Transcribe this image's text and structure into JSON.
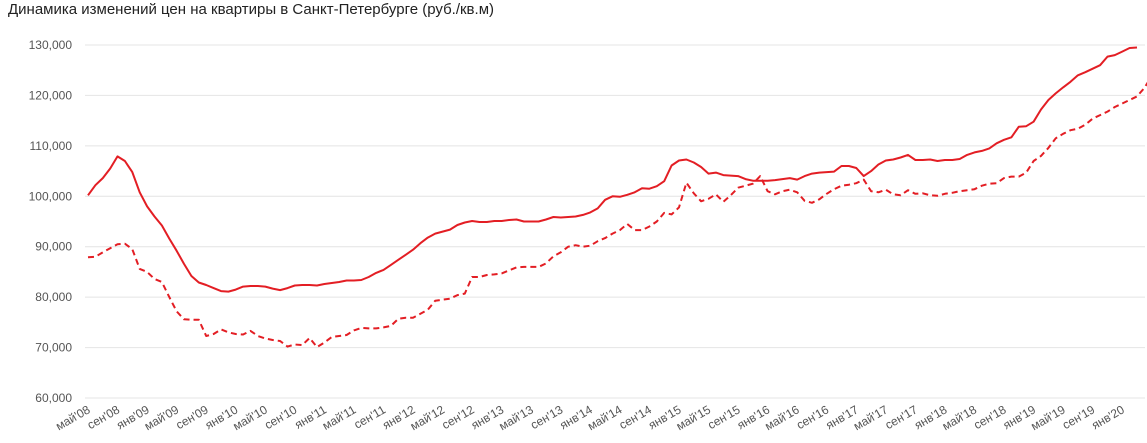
{
  "chart_data": {
    "type": "line",
    "title": "Динамика изменений цен на квартиры в Санкт-Петербурге (руб./кв.м)",
    "xlabel": "",
    "ylabel": "",
    "ylim": [
      60000,
      130000
    ],
    "yticks": [
      60000,
      70000,
      80000,
      90000,
      100000,
      110000,
      120000,
      130000
    ],
    "ytick_labels": [
      "60,000",
      "70,000",
      "80,000",
      "90,000",
      "100,000",
      "110,000",
      "120,000",
      "130,000"
    ],
    "x_start": "май'08",
    "grid": true,
    "legend": "none",
    "tick_labels": [
      {
        "index": 0,
        "label": "май'08"
      },
      {
        "index": 4,
        "label": "сен'08"
      },
      {
        "index": 8,
        "label": "янв'09"
      },
      {
        "index": 12,
        "label": "май'09"
      },
      {
        "index": 16,
        "label": "сен'09"
      },
      {
        "index": 20,
        "label": "янв'10"
      },
      {
        "index": 24,
        "label": "май'10"
      },
      {
        "index": 28,
        "label": "сен'10"
      },
      {
        "index": 32,
        "label": "янв'11"
      },
      {
        "index": 36,
        "label": "май'11"
      },
      {
        "index": 40,
        "label": "сен'11"
      },
      {
        "index": 44,
        "label": "янв'12"
      },
      {
        "index": 48,
        "label": "май'12"
      },
      {
        "index": 52,
        "label": "сен'12"
      },
      {
        "index": 56,
        "label": "янв'13"
      },
      {
        "index": 60,
        "label": "май'13"
      },
      {
        "index": 64,
        "label": "сен'13"
      },
      {
        "index": 68,
        "label": "янв'14"
      },
      {
        "index": 72,
        "label": "май'14"
      },
      {
        "index": 76,
        "label": "сен'14"
      },
      {
        "index": 80,
        "label": "янв'15"
      },
      {
        "index": 84,
        "label": "май'15"
      },
      {
        "index": 88,
        "label": "сен'15"
      },
      {
        "index": 92,
        "label": "янв'16"
      },
      {
        "index": 96,
        "label": "май'16"
      },
      {
        "index": 100,
        "label": "сен'16"
      },
      {
        "index": 104,
        "label": "янв'17"
      },
      {
        "index": 108,
        "label": "май'17"
      },
      {
        "index": 112,
        "label": "сен'17"
      },
      {
        "index": 116,
        "label": "янв'18"
      },
      {
        "index": 120,
        "label": "май'18"
      },
      {
        "index": 124,
        "label": "сен'18"
      },
      {
        "index": 128,
        "label": "янв'19"
      },
      {
        "index": 132,
        "label": "май'19"
      },
      {
        "index": 136,
        "label": "сен'19"
      },
      {
        "index": 140,
        "label": "янв'20"
      }
    ],
    "series": [
      {
        "style": "solid",
        "color": "#e31e24",
        "values": [
          100200,
          102200,
          103600,
          105500,
          107900,
          107000,
          104800,
          100800,
          98000,
          96000,
          94200,
          91600,
          89200,
          86600,
          84200,
          82900,
          82400,
          81800,
          81200,
          81100,
          81500,
          82100,
          82200,
          82200,
          82100,
          81700,
          81400,
          81800,
          82300,
          82400,
          82400,
          82300,
          82600,
          82800,
          83000,
          83300,
          83300,
          83400,
          84000,
          84800,
          85400,
          86400,
          87400,
          88400,
          89400,
          90700,
          91800,
          92600,
          93000,
          93400,
          94300,
          94800,
          95100,
          94900,
          94900,
          95100,
          95100,
          95300,
          95400,
          95000,
          95000,
          95000,
          95400,
          95900,
          95800,
          95900,
          96000,
          96300,
          96800,
          97600,
          99300,
          100000,
          99900,
          100300,
          100800,
          101600,
          101500,
          102000,
          103000,
          106100,
          107100,
          107300,
          106700,
          105800,
          104500,
          104700,
          104200,
          104100,
          104000,
          103400,
          103100,
          103100,
          103100,
          103200,
          103400,
          103600,
          103300,
          104000,
          104500,
          104700,
          104800,
          104900,
          106000,
          106000,
          105600,
          104000,
          105000,
          106300,
          107100,
          107300,
          107700,
          108200,
          107200,
          107200,
          107300,
          107000,
          107200,
          107200,
          107400,
          108200,
          108700,
          109000,
          109500,
          110500,
          111200,
          111700,
          113800,
          113900,
          114800,
          117200,
          119100,
          120400,
          121600,
          122700,
          124000,
          124600,
          125300,
          126000,
          127700,
          128000,
          128700,
          129400,
          129500
        ]
      },
      {
        "style": "dashed",
        "color": "#e31e24",
        "values": [
          87900,
          88000,
          88900,
          89700,
          90500,
          90600,
          89500,
          85600,
          85000,
          83600,
          83000,
          80000,
          77200,
          75600,
          75500,
          75500,
          72300,
          72700,
          73600,
          73000,
          72700,
          72600,
          73300,
          72300,
          71800,
          71500,
          71300,
          70200,
          70600,
          70500,
          71900,
          70100,
          71000,
          72100,
          72300,
          72500,
          73400,
          73900,
          73800,
          73800,
          74000,
          74300,
          75700,
          75900,
          75900,
          76700,
          77500,
          79300,
          79500,
          79700,
          80400,
          80700,
          84000,
          84000,
          84400,
          84500,
          84700,
          85300,
          85900,
          86000,
          86000,
          86000,
          86700,
          88100,
          88900,
          90000,
          90300,
          90000,
          90200,
          91100,
          91700,
          92600,
          93300,
          94500,
          93300,
          93300,
          94000,
          95000,
          96700,
          96400,
          97800,
          102700,
          100600,
          99000,
          99500,
          100400,
          98900,
          100200,
          101700,
          102100,
          102500,
          104000,
          101000,
          100400,
          101000,
          101300,
          100800,
          99100,
          98700,
          99400,
          100500,
          101400,
          102100,
          102300,
          102600,
          103300,
          101000,
          100800,
          101300,
          100400,
          100200,
          101200,
          100500,
          100600,
          100200,
          100100,
          100500,
          100700,
          101000,
          101200,
          101400,
          102100,
          102500,
          102600,
          103600,
          103900,
          103900,
          104700,
          107000,
          108000,
          109600,
          111500,
          112400,
          113100,
          113400,
          114200,
          115400,
          116100,
          116800,
          117700,
          118400,
          119100,
          119800,
          121500,
          123900
        ]
      }
    ]
  }
}
